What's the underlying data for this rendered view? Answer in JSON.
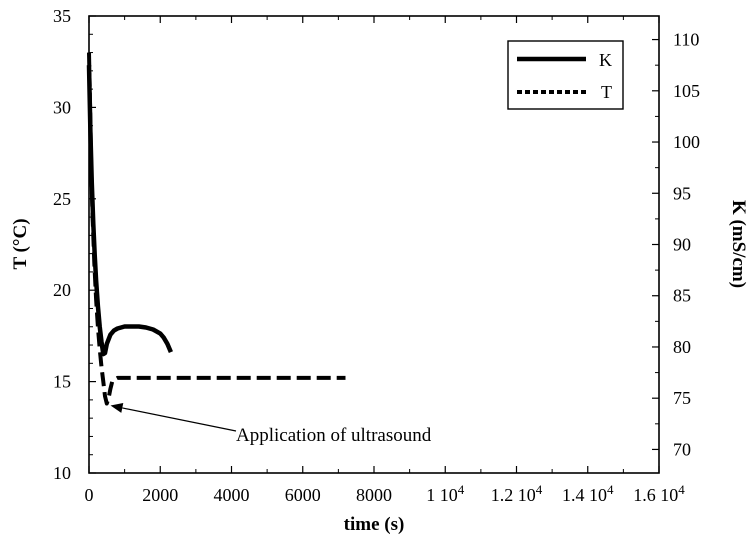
{
  "chart_data": {
    "type": "line",
    "xlabel": "time (s)",
    "ylabel_left": "T (°C)",
    "ylabel_right": "K (mS/cm)",
    "xlim": [
      0,
      16000
    ],
    "ylim_left": [
      10,
      35
    ],
    "ylim_right": [
      67.7,
      112.3
    ],
    "x_ticks": [
      0,
      2000,
      4000,
      6000,
      8000,
      10000,
      12000,
      14000,
      16000
    ],
    "x_tick_labels": [
      "0",
      "2000",
      "4000",
      "6000",
      "8000",
      "1 10",
      "1.2 10",
      "1.4 10",
      "1.6 10"
    ],
    "x_tick_exponent": "4",
    "y_left_ticks": [
      10,
      15,
      20,
      25,
      30,
      35
    ],
    "y_left_tick_labels": [
      "10",
      "15",
      "20",
      "25",
      "30",
      "35"
    ],
    "y_right_ticks": [
      70,
      75,
      80,
      85,
      90,
      95,
      100,
      105,
      110
    ],
    "y_right_tick_labels": [
      "70",
      "75",
      "80",
      "85",
      "90",
      "95",
      "100",
      "105",
      "110"
    ],
    "grid": false,
    "legend_position": "top-right",
    "series": [
      {
        "name": "K",
        "axis": "right",
        "style": "solid",
        "color": "#000000",
        "x": [
          0,
          40,
          80,
          120,
          160,
          200,
          250,
          300,
          350,
          400,
          450,
          500,
          600,
          700,
          800,
          900,
          1000,
          1200,
          1400,
          1600,
          1800,
          2000,
          2100,
          2200,
          2300
        ],
        "y": [
          107.5,
          101,
          96,
          92,
          89,
          86.5,
          84,
          82,
          80.5,
          79.3,
          79.4,
          80.3,
          81.2,
          81.6,
          81.8,
          81.9,
          82,
          82,
          82,
          81.9,
          81.7,
          81.3,
          80.9,
          80.3,
          79.5
        ]
      },
      {
        "name": "T",
        "axis": "left",
        "style": "dashed",
        "color": "#000000",
        "x": [
          0,
          30,
          60,
          100,
          150,
          200,
          250,
          300,
          350,
          400,
          450,
          500,
          550,
          600,
          650,
          700,
          800,
          1000,
          2000,
          3000,
          4000,
          5000,
          6000,
          7200
        ],
        "y": [
          33,
          30,
          27,
          24,
          21.5,
          19.5,
          18,
          16.8,
          15.8,
          15,
          14.2,
          13.8,
          14.1,
          14.6,
          15,
          15.1,
          15.2,
          15.2,
          15.2,
          15.2,
          15.2,
          15.2,
          15.2,
          15.2
        ]
      }
    ],
    "annotations": [
      {
        "text": "Application of ultrasound",
        "points_to": {
          "x": 520,
          "y": 13.8,
          "axis": "left"
        }
      }
    ]
  }
}
